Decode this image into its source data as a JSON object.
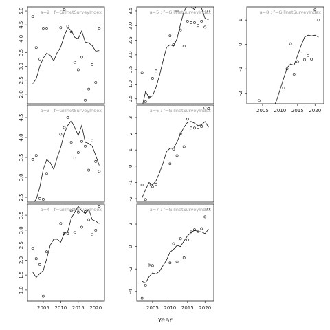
{
  "xlabel": "Year",
  "chart_data": [
    {
      "type": "line",
      "title": "a=2 : f=GillnetSurveyIndex",
      "x": [
        2002,
        2003,
        2004,
        2005,
        2006,
        2007,
        2008,
        2009,
        2010,
        2011,
        2012,
        2013,
        2014,
        2015,
        2016,
        2017,
        2018,
        2019,
        2020,
        2021
      ],
      "values": [
        2.38,
        2.55,
        3.0,
        3.3,
        3.48,
        3.4,
        3.2,
        3.5,
        3.7,
        4.1,
        4.4,
        4.3,
        4.05,
        4.0,
        4.28,
        3.88,
        3.85,
        3.75,
        3.55,
        3.57
      ],
      "points": [
        4.8,
        3.68,
        3.27,
        4.38,
        4.38,
        null,
        null,
        null,
        4.4,
        5.05,
        4.45,
        4.25,
        3.15,
        2.88,
        3.33,
        1.78,
        2.18,
        3.07,
        2.42,
        4.38
      ],
      "xlim": [
        2000.5,
        2022.5
      ],
      "ylim": [
        1.65,
        5.15
      ],
      "yticks": [
        {
          "value": 2,
          "label": "2.0"
        },
        2.5,
        {
          "value": 3,
          "label": "3.0"
        },
        3.5,
        {
          "value": 4,
          "label": "4.0"
        },
        4.5,
        {
          "value": 5,
          "label": "5.0"
        }
      ]
    },
    {
      "type": "line",
      "title": "a=5 : f=GillnetSurveyIndex",
      "x": [
        2002,
        2003,
        2004,
        2005,
        2006,
        2007,
        2008,
        2009,
        2010,
        2011,
        2012,
        2013,
        2014,
        2015,
        2016,
        2017,
        2018,
        2019,
        2020,
        2021
      ],
      "values": [
        0.2,
        0.75,
        0.55,
        0.6,
        0.9,
        1.3,
        1.8,
        2.25,
        2.35,
        2.3,
        2.55,
        3.05,
        3.5,
        3.7,
        3.65,
        3.55,
        3.8,
        3.6,
        3.25,
        3.2
      ],
      "points": [
        1.4,
        0.4,
        0.55,
        1.2,
        1.45,
        null,
        null,
        null,
        2.65,
        2.35,
        3.5,
        2.85,
        2.3,
        3.15,
        3.1,
        3.1,
        3.0,
        3.15,
        2.95,
        3.5
      ],
      "xlim": [
        2000.5,
        2022.5
      ],
      "ylim": [
        0.33,
        3.64
      ],
      "yticks": [
        0.5,
        {
          "value": 1,
          "label": "1.0"
        },
        1.5,
        {
          "value": 2,
          "label": "2.0"
        },
        2.5,
        {
          "value": 3,
          "label": "3.0"
        },
        3.5
      ]
    },
    {
      "type": "line",
      "title": "a=8 : f=GillnetSurveyIndex",
      "x": [
        2002,
        2003,
        2004,
        2005,
        2006,
        2007,
        2008,
        2009,
        2010,
        2011,
        2012,
        2013,
        2014,
        2015,
        2016,
        2017,
        2018,
        2019,
        2020,
        2021
      ],
      "values": [
        null,
        null,
        null,
        null,
        null,
        null,
        -2.6,
        -2.3,
        -1.85,
        -1.4,
        -0.95,
        -0.8,
        -0.85,
        -0.45,
        -0.05,
        0.3,
        0.38,
        0.35,
        0.38,
        0.3
      ],
      "points": [
        null,
        null,
        -2.3,
        null,
        null,
        null,
        null,
        null,
        null,
        -1.78,
        -1.0,
        0.03,
        -1.22,
        -0.7,
        -0.35,
        -0.62,
        -0.45,
        -0.6,
        1.42,
        1.0
      ],
      "xlim": [
        2000.5,
        2022.5
      ],
      "ylim": [
        -2.43,
        1.54
      ],
      "yticks": [
        -2,
        -1,
        0,
        1
      ],
      "xticks": [
        2005,
        2010,
        2015,
        2020
      ]
    },
    {
      "type": "line",
      "title": "a=3 : f=GillnetSurveyIndex",
      "x": [
        2002,
        2003,
        2004,
        2005,
        2006,
        2007,
        2008,
        2009,
        2010,
        2011,
        2012,
        2013,
        2014,
        2015,
        2016,
        2017,
        2018,
        2019,
        2020,
        2021
      ],
      "values": [
        2.35,
        2.45,
        2.75,
        3.2,
        3.45,
        3.37,
        3.2,
        3.5,
        3.75,
        4.1,
        4.3,
        4.42,
        4.25,
        4.05,
        4.3,
        3.88,
        3.85,
        3.78,
        3.55,
        3.3
      ],
      "points": [
        3.45,
        3.55,
        2.47,
        2.45,
        3.1,
        null,
        null,
        null,
        4.08,
        4.25,
        4.5,
        3.88,
        3.48,
        3.62,
        3.9,
        3.78,
        3.18,
        3.92,
        3.4,
        3.15
      ],
      "xlim": [
        2000.5,
        2022.5
      ],
      "ylim": [
        2.38,
        4.81
      ],
      "yticks": [
        2.5,
        {
          "value": 3,
          "label": "3.0"
        },
        3.5,
        {
          "value": 4,
          "label": "4.0"
        },
        4.5
      ]
    },
    {
      "type": "line",
      "title": "a=6 : f=GillnetSurveyIndex",
      "x": [
        2002,
        2003,
        2004,
        2005,
        2006,
        2007,
        2008,
        2009,
        2010,
        2011,
        2012,
        2013,
        2014,
        2015,
        2016,
        2017,
        2018,
        2019,
        2020,
        2021
      ],
      "values": [
        -1.95,
        -1.45,
        -1.0,
        -1.15,
        -0.9,
        -0.4,
        0.2,
        0.9,
        1.1,
        1.1,
        1.5,
        2.0,
        2.4,
        2.7,
        2.75,
        2.65,
        2.5,
        2.55,
        2.75,
        2.4
      ],
      "points": [
        -1.15,
        -2.05,
        -1.15,
        -1.25,
        -1.1,
        null,
        null,
        null,
        0.15,
        1.05,
        0.65,
        2.0,
        1.2,
        2.9,
        2.35,
        2.35,
        2.4,
        2.45,
        3.6,
        3.55
      ],
      "xlim": [
        2000.5,
        2022.5
      ],
      "ylim": [
        -2.21,
        3.76
      ],
      "yticks": [
        -2,
        -1,
        0,
        1,
        2,
        3
      ]
    },
    {
      "type": "line",
      "title": "a=4 : f=GillnetSurveyIndex",
      "x": [
        2002,
        2003,
        2004,
        2005,
        2006,
        2007,
        2008,
        2009,
        2010,
        2011,
        2012,
        2013,
        2014,
        2015,
        2016,
        2017,
        2018,
        2019,
        2020,
        2021
      ],
      "values": [
        1.6,
        1.42,
        1.55,
        1.65,
        2.05,
        2.5,
        2.7,
        2.7,
        2.6,
        2.9,
        2.95,
        3.4,
        3.6,
        3.8,
        3.65,
        3.55,
        3.7,
        3.35,
        3.3,
        3.22
      ],
      "points": [
        2.4,
        2.05,
        1.85,
        0.8,
        2.28,
        null,
        null,
        null,
        3.22,
        2.88,
        2.88,
        3.65,
        2.92,
        3.6,
        3.1,
        3.62,
        3.35,
        2.85,
        3.0,
        3.8
      ],
      "xlim": [
        2000.5,
        2022.5
      ],
      "ylim": [
        0.63,
        3.87
      ],
      "yticks": [
        {
          "value": 1,
          "label": "1.0"
        },
        1.5,
        {
          "value": 2,
          "label": "2.0"
        },
        2.5,
        {
          "value": 3,
          "label": "3.0"
        },
        3.5
      ],
      "xticks": [
        2005,
        2010,
        2015,
        2020
      ]
    },
    {
      "type": "line",
      "title": "a=7 : f=GillnetSurveyIndex",
      "x": [
        2002,
        2003,
        2004,
        2005,
        2006,
        2007,
        2008,
        2009,
        2010,
        2011,
        2012,
        2013,
        2014,
        2015,
        2016,
        2017,
        2018,
        2019,
        2020,
        2021
      ],
      "values": [
        -3.1,
        -3.25,
        -2.7,
        -2.35,
        -2.45,
        -2.2,
        -1.7,
        -1.2,
        -0.5,
        -0.25,
        0.1,
        0.0,
        0.5,
        0.95,
        1.25,
        1.45,
        1.35,
        1.3,
        1.15,
        1.55
      ],
      "points": [
        -4.6,
        -3.45,
        -1.65,
        -1.7,
        null,
        null,
        null,
        null,
        -1.45,
        0.25,
        -1.35,
        0.7,
        -1.0,
        0.6,
        1.3,
        1.5,
        1.35,
        1.6,
        2.65,
        3.35
      ],
      "xlim": [
        2000.5,
        2022.5
      ],
      "ylim": [
        -4.87,
        3.78
      ],
      "yticks": [
        -4,
        -2,
        0,
        2
      ],
      "xticks": [
        2005,
        2010,
        2015,
        2020
      ]
    }
  ]
}
